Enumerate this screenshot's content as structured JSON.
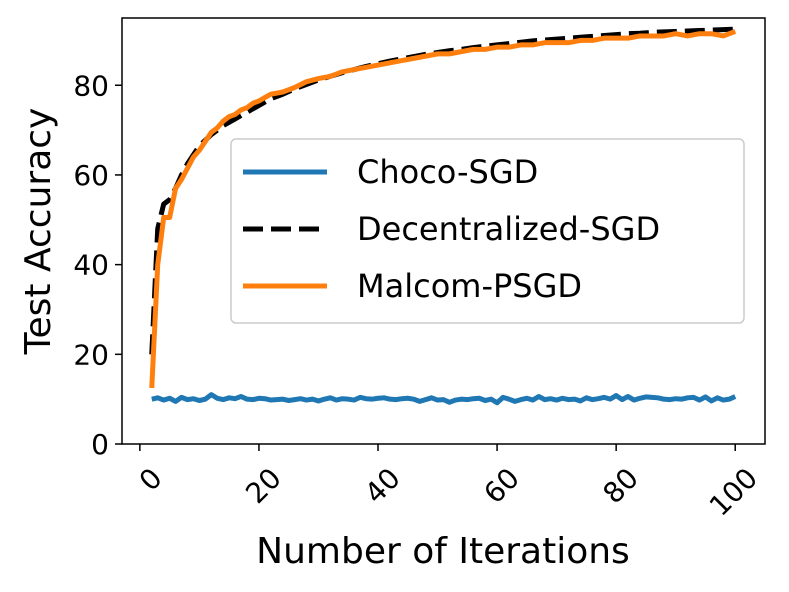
{
  "chart_data": {
    "type": "line",
    "title": "",
    "xlabel": "Number of Iterations",
    "ylabel": "Test Accuracy",
    "xlim": [
      -3,
      105
    ],
    "ylim": [
      0,
      95
    ],
    "xticks": [
      0,
      20,
      40,
      60,
      80,
      100
    ],
    "yticks": [
      0,
      20,
      40,
      60,
      80
    ],
    "xtick_labels": [
      "0",
      "20",
      "40",
      "60",
      "80",
      "100"
    ],
    "ytick_labels": [
      "0",
      "20",
      "40",
      "60",
      "80"
    ],
    "grid": false,
    "legend_position": "center-right",
    "series": [
      {
        "name": "Choco-SGD",
        "color": "#1f77b4",
        "dash": "solid",
        "x": [
          2,
          3,
          4,
          5,
          6,
          7,
          8,
          9,
          10,
          11,
          12,
          13,
          14,
          15,
          16,
          17,
          18,
          19,
          20,
          21,
          22,
          23,
          24,
          25,
          26,
          27,
          28,
          29,
          30,
          31,
          32,
          33,
          34,
          35,
          36,
          37,
          38,
          39,
          40,
          41,
          42,
          43,
          44,
          45,
          46,
          47,
          48,
          49,
          50,
          51,
          52,
          53,
          54,
          55,
          56,
          57,
          58,
          59,
          60,
          61,
          62,
          63,
          64,
          65,
          66,
          67,
          68,
          69,
          70,
          71,
          72,
          73,
          74,
          75,
          76,
          77,
          78,
          79,
          80,
          81,
          82,
          83,
          84,
          85,
          86,
          87,
          88,
          89,
          90,
          91,
          92,
          93,
          94,
          95,
          96,
          97,
          98,
          99,
          100
        ],
        "y": [
          10.0,
          10.3,
          9.8,
          10.2,
          9.5,
          10.4,
          9.9,
          10.1,
          9.7,
          10.0,
          11.0,
          10.2,
          9.9,
          10.3,
          10.1,
          10.6,
          10.0,
          9.9,
          10.2,
          10.1,
          9.8,
          9.9,
          10.0,
          9.7,
          9.9,
          10.1,
          9.8,
          10.0,
          9.6,
          10.0,
          10.3,
          9.8,
          10.1,
          10.0,
          9.8,
          10.4,
          10.1,
          10.0,
          10.2,
          10.3,
          10.0,
          9.9,
          10.1,
          10.2,
          10.0,
          9.5,
          9.9,
          10.3,
          9.8,
          9.9,
          9.3,
          9.8,
          10.0,
          9.9,
          10.1,
          10.2,
          9.7,
          10.0,
          9.2,
          10.4,
          10.0,
          9.5,
          9.9,
          10.2,
          9.8,
          10.6,
          9.9,
          10.1,
          9.8,
          10.2,
          9.9,
          10.0,
          9.6,
          10.3,
          9.9,
          10.1,
          10.4,
          10.0,
          10.8,
          9.9,
          10.6,
          9.8,
          10.2,
          10.5,
          10.4,
          10.3,
          10.0,
          9.9,
          10.1,
          10.0,
          10.3,
          10.4,
          9.8,
          10.5,
          9.6,
          10.3,
          9.8,
          10.0,
          10.6
        ]
      },
      {
        "name": "Decentralized-SGD",
        "color": "#000000",
        "dash": "dashed",
        "x": [
          2,
          3,
          4,
          5,
          6,
          7,
          8,
          9,
          10,
          12,
          14,
          16,
          18,
          20,
          22,
          24,
          26,
          28,
          30,
          32,
          34,
          36,
          38,
          40,
          42,
          44,
          46,
          48,
          50,
          52,
          54,
          56,
          58,
          60,
          62,
          64,
          66,
          68,
          70,
          72,
          74,
          76,
          78,
          80,
          82,
          84,
          86,
          88,
          90,
          92,
          94,
          96,
          98,
          100
        ],
        "y": [
          20.0,
          48.0,
          53.5,
          54.5,
          57.0,
          60.0,
          62.5,
          64.5,
          66.5,
          69.0,
          71.0,
          72.5,
          74.0,
          75.5,
          77.0,
          78.0,
          79.2,
          80.2,
          81.2,
          82.0,
          82.8,
          83.5,
          84.2,
          84.8,
          85.4,
          85.9,
          86.4,
          86.9,
          87.3,
          87.7,
          88.0,
          88.4,
          88.7,
          89.0,
          89.3,
          89.6,
          89.9,
          90.1,
          90.3,
          90.5,
          90.7,
          90.9,
          91.1,
          91.3,
          91.5,
          91.6,
          91.8,
          91.9,
          92.0,
          92.1,
          92.2,
          92.3,
          92.4,
          92.5
        ]
      },
      {
        "name": "Malcom-PSGD",
        "color": "#ff7f0e",
        "dash": "solid",
        "x": [
          2,
          3,
          4,
          5,
          6,
          7,
          8,
          9,
          10,
          11,
          12,
          13,
          14,
          15,
          16,
          17,
          18,
          19,
          20,
          22,
          24,
          26,
          28,
          30,
          32,
          34,
          36,
          38,
          40,
          42,
          44,
          46,
          48,
          50,
          52,
          54,
          56,
          58,
          60,
          62,
          64,
          66,
          68,
          70,
          72,
          74,
          76,
          78,
          80,
          82,
          84,
          86,
          88,
          90,
          92,
          94,
          96,
          98,
          100
        ],
        "y": [
          12.5,
          40.0,
          50.5,
          50.5,
          57.0,
          59.0,
          61.5,
          64.0,
          65.5,
          67.5,
          69.5,
          70.5,
          72.0,
          73.0,
          73.5,
          74.5,
          75.0,
          76.0,
          76.5,
          78.0,
          78.5,
          79.5,
          80.8,
          81.5,
          82.0,
          83.0,
          83.5,
          84.0,
          84.5,
          85.0,
          85.5,
          86.0,
          86.5,
          87.0,
          87.0,
          87.5,
          88.0,
          88.0,
          88.5,
          88.5,
          89.0,
          89.0,
          89.5,
          89.5,
          89.5,
          90.0,
          90.0,
          90.5,
          90.5,
          90.5,
          91.0,
          91.0,
          91.0,
          91.5,
          91.0,
          91.5,
          91.5,
          91.0,
          92.0
        ]
      }
    ]
  }
}
